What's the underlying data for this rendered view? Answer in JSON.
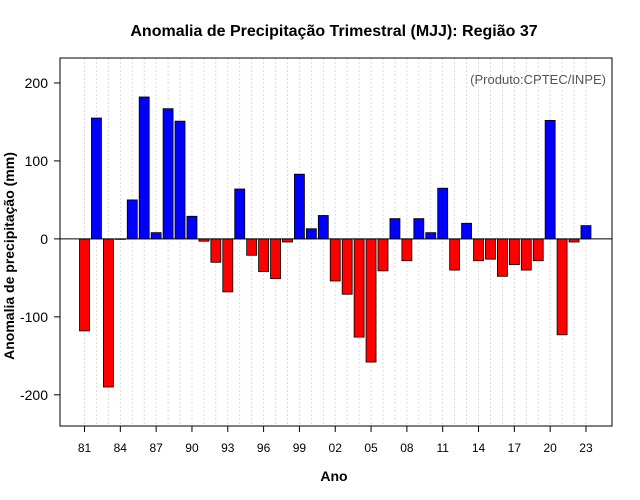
{
  "chart_data": {
    "type": "bar",
    "title": "Anomalia de Precipitação Trimestral (MJJ): Região 37",
    "xlabel": "Ano",
    "ylabel": "Anomalia de precipitação (mm)",
    "credit": "(Produto:CPTEC/INPE)",
    "ylim": [
      -240,
      232
    ],
    "yticks": [
      -200,
      -100,
      0,
      100,
      200
    ],
    "grid": true,
    "colors": {
      "positive": "#0000ff",
      "negative": "#ff0000",
      "border": "#000000",
      "grid": "#d3d3d3"
    },
    "x_tick_labels": [
      "81",
      "84",
      "87",
      "90",
      "93",
      "96",
      "99",
      "02",
      "05",
      "08",
      "11",
      "14",
      "17",
      "20",
      "23"
    ],
    "x_tick_every": 3,
    "categories": [
      "1981",
      "1982",
      "1983",
      "1984",
      "1985",
      "1986",
      "1987",
      "1988",
      "1989",
      "1990",
      "1991",
      "1992",
      "1993",
      "1994",
      "1995",
      "1996",
      "1997",
      "1998",
      "1999",
      "2000",
      "2001",
      "2002",
      "2003",
      "2004",
      "2005",
      "2006",
      "2007",
      "2008",
      "2009",
      "2010",
      "2011",
      "2012",
      "2013",
      "2014",
      "2015",
      "2016",
      "2017",
      "2018",
      "2019",
      "2020",
      "2021",
      "2022",
      "2023"
    ],
    "values": [
      -118,
      155,
      -190,
      0,
      50,
      182,
      8,
      167,
      151,
      29,
      -3,
      -30,
      -68,
      64,
      -21,
      -42,
      -51,
      -4,
      83,
      13,
      30,
      -54,
      -71,
      -126,
      -158,
      -41,
      26,
      -28,
      26,
      8,
      65,
      -40,
      20,
      -28,
      -26,
      -48,
      -33,
      -40,
      -28,
      152,
      -123,
      -4,
      17
    ]
  }
}
